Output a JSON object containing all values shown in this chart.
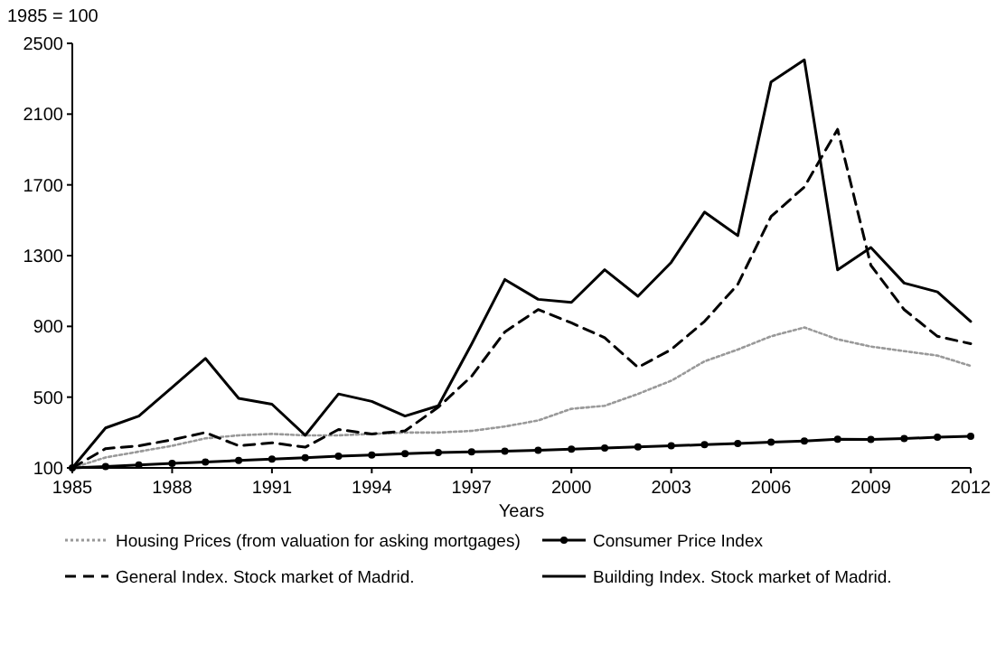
{
  "chart_data": {
    "type": "line",
    "ylabel": "1985 = 100",
    "xlabel": "Years",
    "xlim": [
      1985,
      2012
    ],
    "xticks": [
      1985,
      1988,
      1991,
      1994,
      1997,
      2000,
      2003,
      2006,
      2009,
      2012
    ],
    "ylim": [
      100,
      2500
    ],
    "yticks": [
      100,
      500,
      900,
      1300,
      1700,
      2100,
      2500
    ],
    "grid": false,
    "legend": "bottom",
    "x": [
      1985,
      1986,
      1987,
      1988,
      1989,
      1990,
      1991,
      1992,
      1993,
      1994,
      1995,
      1996,
      1997,
      1998,
      1999,
      2000,
      2001,
      2002,
      2003,
      2004,
      2005,
      2006,
      2007,
      2008,
      2009,
      2010,
      2011,
      2012
    ],
    "series": [
      {
        "name": "Housing Prices (from valuation for asking mortgages)",
        "color": "#999999",
        "line_style": "dotted",
        "marker": "none",
        "values": [
          100,
          159,
          192,
          225,
          267,
          284,
          292,
          284,
          284,
          292,
          300,
          300,
          309,
          334,
          368,
          434,
          451,
          518,
          593,
          702,
          769,
          844,
          894,
          827,
          786,
          760,
          735,
          677
        ]
      },
      {
        "name": "Consumer Price Index",
        "color": "#000000",
        "line_style": "solid",
        "marker": "circle",
        "values": [
          100,
          108,
          117,
          125,
          133,
          142,
          150,
          158,
          166,
          173,
          181,
          187,
          191,
          195,
          199,
          206,
          212,
          219,
          225,
          231,
          238,
          246,
          252,
          262,
          261,
          266,
          273,
          279
        ]
      },
      {
        "name": "General Index. Stock market of Madrid.",
        "color": "#000000",
        "line_style": "dashed",
        "marker": "none",
        "values": [
          100,
          209,
          225,
          259,
          300,
          225,
          242,
          217,
          317,
          292,
          309,
          443,
          618,
          869,
          995,
          920,
          836,
          668,
          769,
          928,
          1137,
          1521,
          1688,
          2014,
          1245,
          995,
          844,
          802
        ]
      },
      {
        "name": "Building Index. Stock market of Madrid.",
        "color": "#000000",
        "line_style": "solid",
        "marker": "none",
        "values": [
          100,
          326,
          393,
          555,
          719,
          493,
          460,
          284,
          518,
          476,
          393,
          451,
          800,
          1165,
          1053,
          1036,
          1220,
          1070,
          1262,
          1546,
          1413,
          2282,
          2407,
          1220,
          1346,
          1145,
          1095,
          928
        ]
      }
    ]
  }
}
